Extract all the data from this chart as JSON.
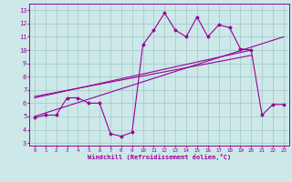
{
  "xlabel": "Windchill (Refroidissement éolien,°C)",
  "bg_color": "#cce8e8",
  "grid_color": "#aacccc",
  "line_color": "#990099",
  "x_ticks": [
    0,
    1,
    2,
    3,
    4,
    5,
    6,
    7,
    8,
    9,
    10,
    11,
    12,
    13,
    14,
    15,
    16,
    17,
    18,
    19,
    20,
    21,
    22,
    23
  ],
  "y_ticks": [
    3,
    4,
    5,
    6,
    7,
    8,
    9,
    10,
    11,
    12,
    13
  ],
  "xlim": [
    -0.5,
    23.5
  ],
  "ylim": [
    2.8,
    13.5
  ],
  "series1_x": [
    0,
    1,
    2,
    3,
    4,
    5,
    6,
    7,
    8,
    9,
    10,
    11,
    12,
    13,
    14,
    15,
    16,
    17,
    18,
    19,
    20,
    21,
    22,
    23
  ],
  "series1_y": [
    4.9,
    5.1,
    5.1,
    6.4,
    6.4,
    6.0,
    6.0,
    3.7,
    3.5,
    3.8,
    10.4,
    11.5,
    12.8,
    11.5,
    11.0,
    12.5,
    11.0,
    11.9,
    11.7,
    10.1,
    10.0,
    5.1,
    5.9,
    5.9
  ],
  "series2_x": [
    0,
    23
  ],
  "series2_y": [
    5.0,
    11.0
  ],
  "series3_x": [
    0,
    20
  ],
  "series3_y": [
    6.4,
    10.0
  ],
  "series4_x": [
    0,
    20
  ],
  "series4_y": [
    6.5,
    9.6
  ]
}
